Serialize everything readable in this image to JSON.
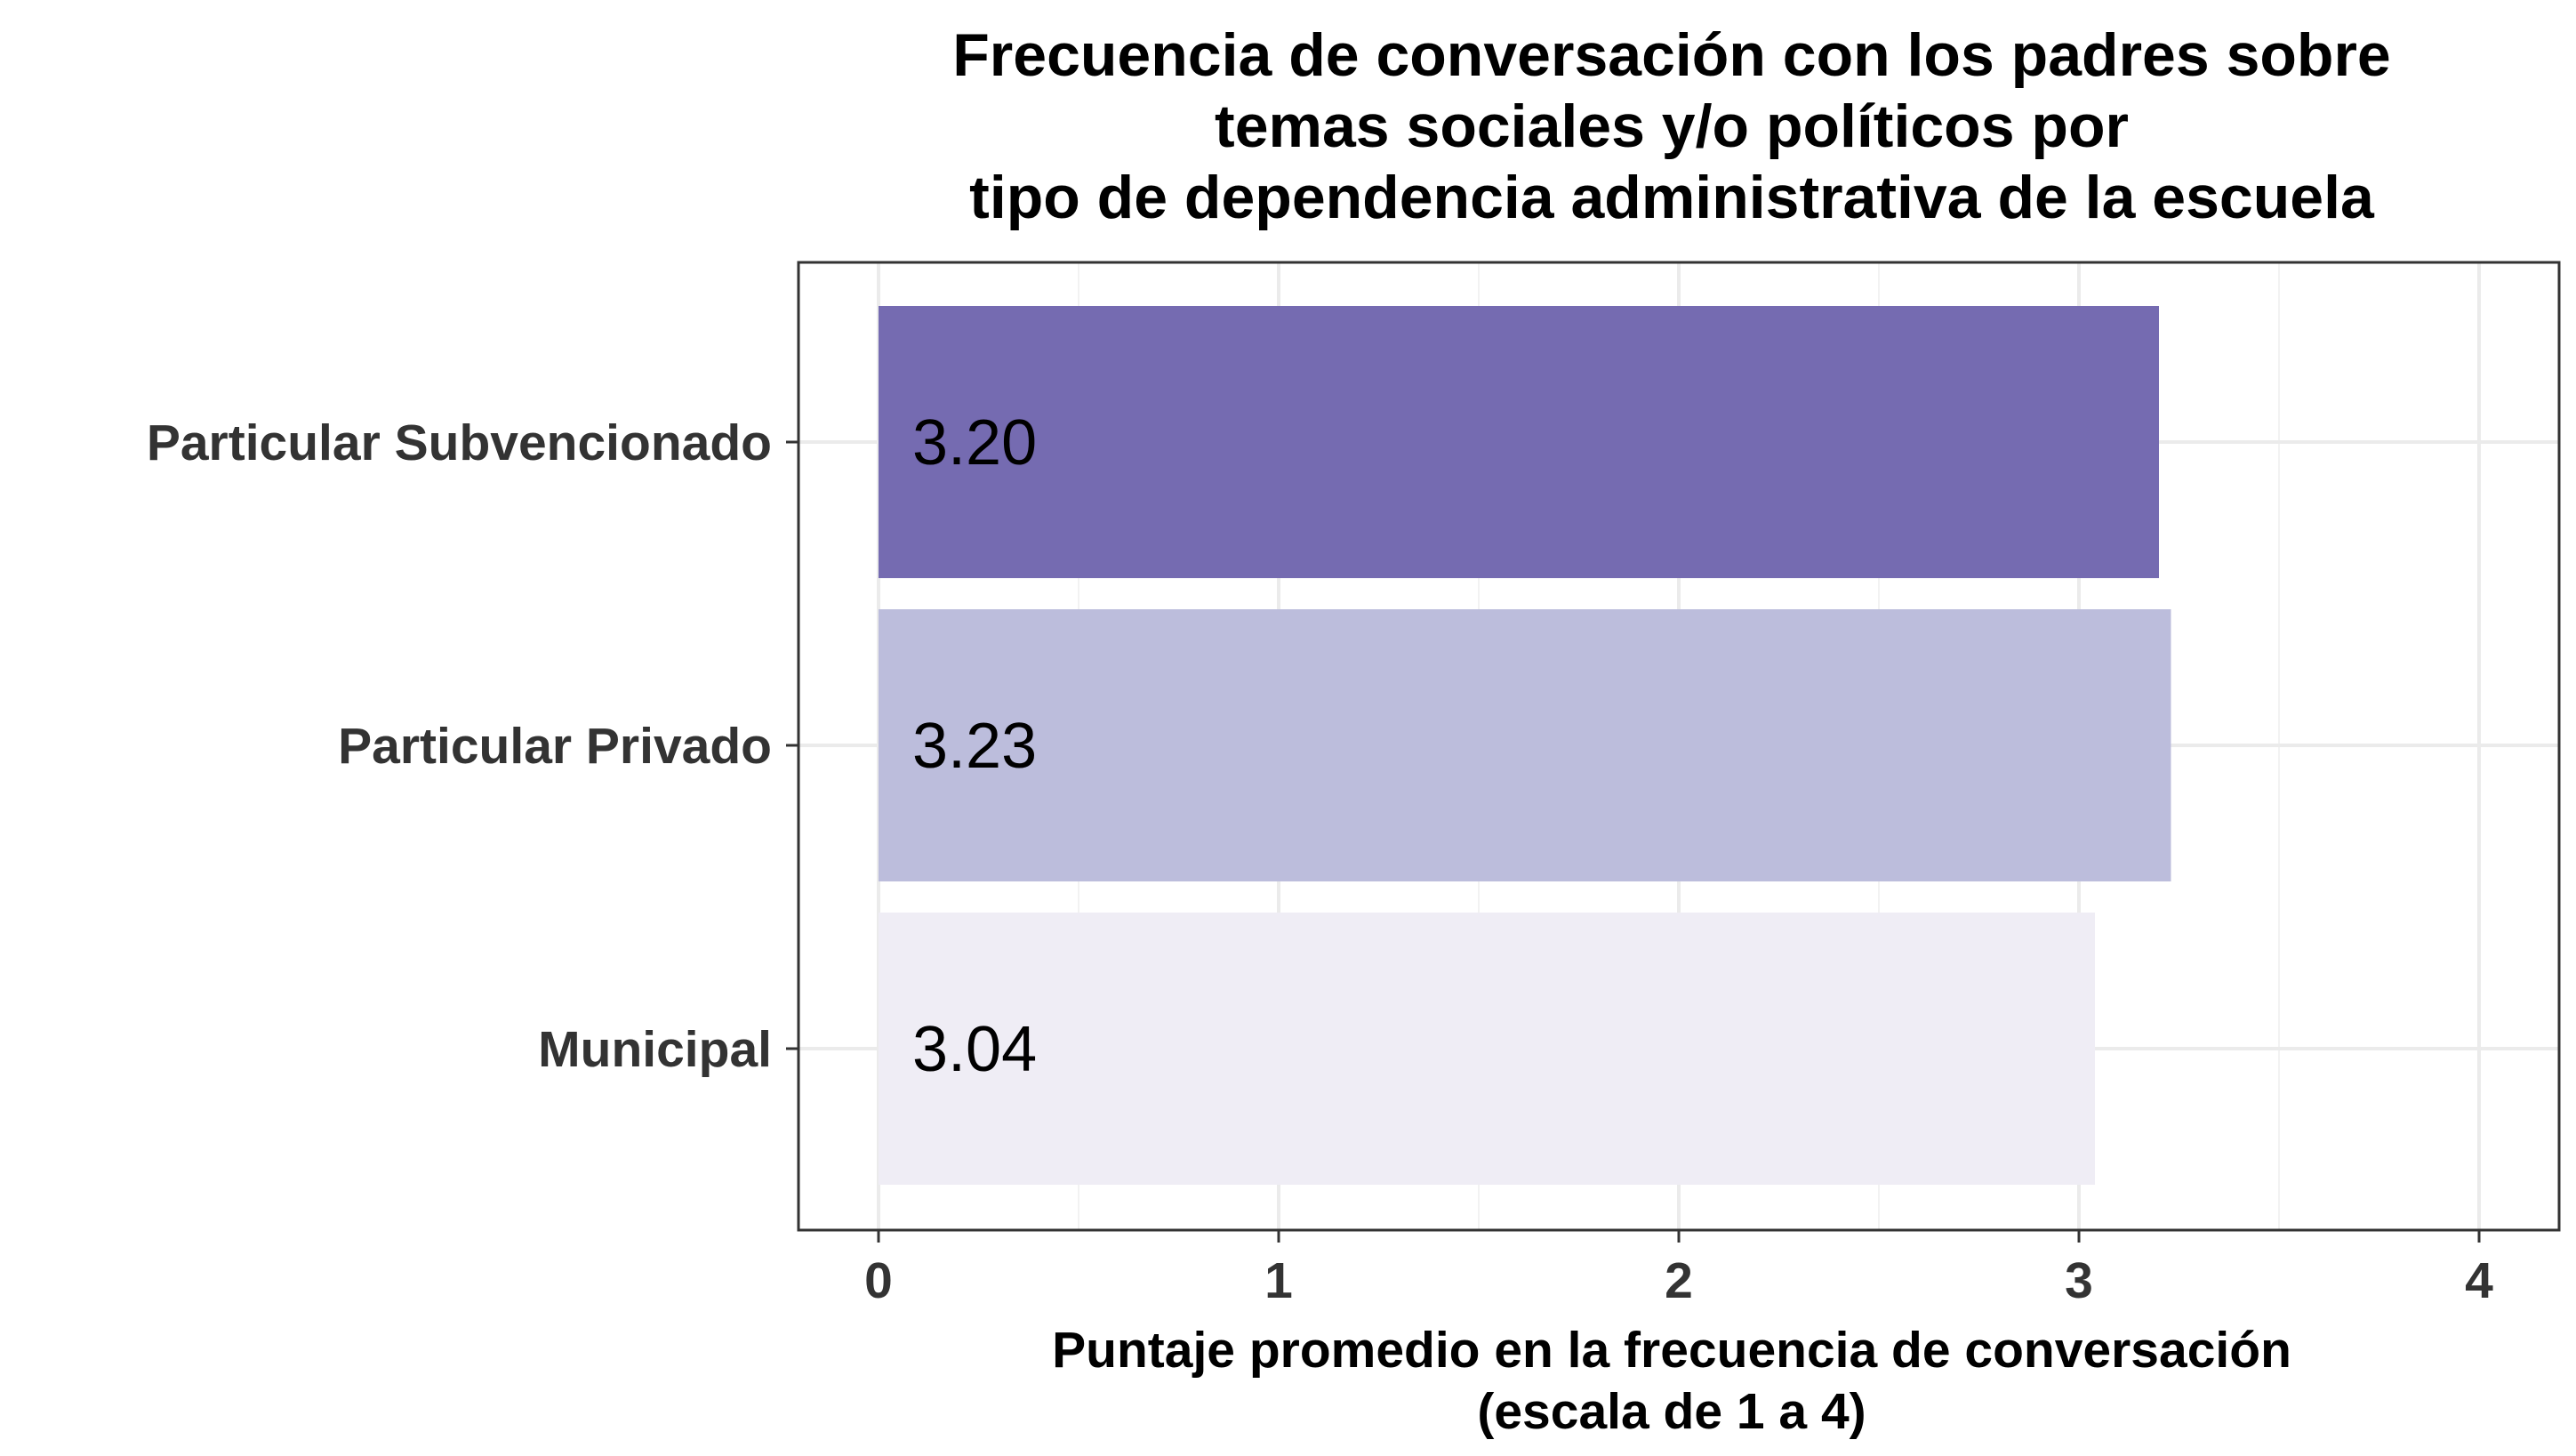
{
  "chart_data": {
    "type": "bar",
    "orientation": "horizontal",
    "title": [
      "Frecuencia de conversación con los padres sobre",
      "temas sociales y/o políticos por",
      "tipo de dependencia administrativa de la escuela"
    ],
    "categories": [
      "Particular Subvencionado",
      "Particular Privado",
      "Municipal"
    ],
    "values": [
      3.2,
      3.23,
      3.04
    ],
    "value_labels": [
      "3.20",
      "3.23",
      "3.04"
    ],
    "colors": [
      "#756bb1",
      "#bcbddc",
      "#efedf5"
    ],
    "xlabel": [
      "Puntaje promedio en la frecuencia de conversación",
      "(escala de 1 a 4)"
    ],
    "ylabel": "",
    "xlim": [
      -0.2,
      4.2
    ],
    "xticks": [
      0,
      1,
      2,
      3,
      4
    ],
    "xtick_labels": [
      "0",
      "1",
      "2",
      "3",
      "4"
    ],
    "grid": true,
    "legend": "none"
  }
}
